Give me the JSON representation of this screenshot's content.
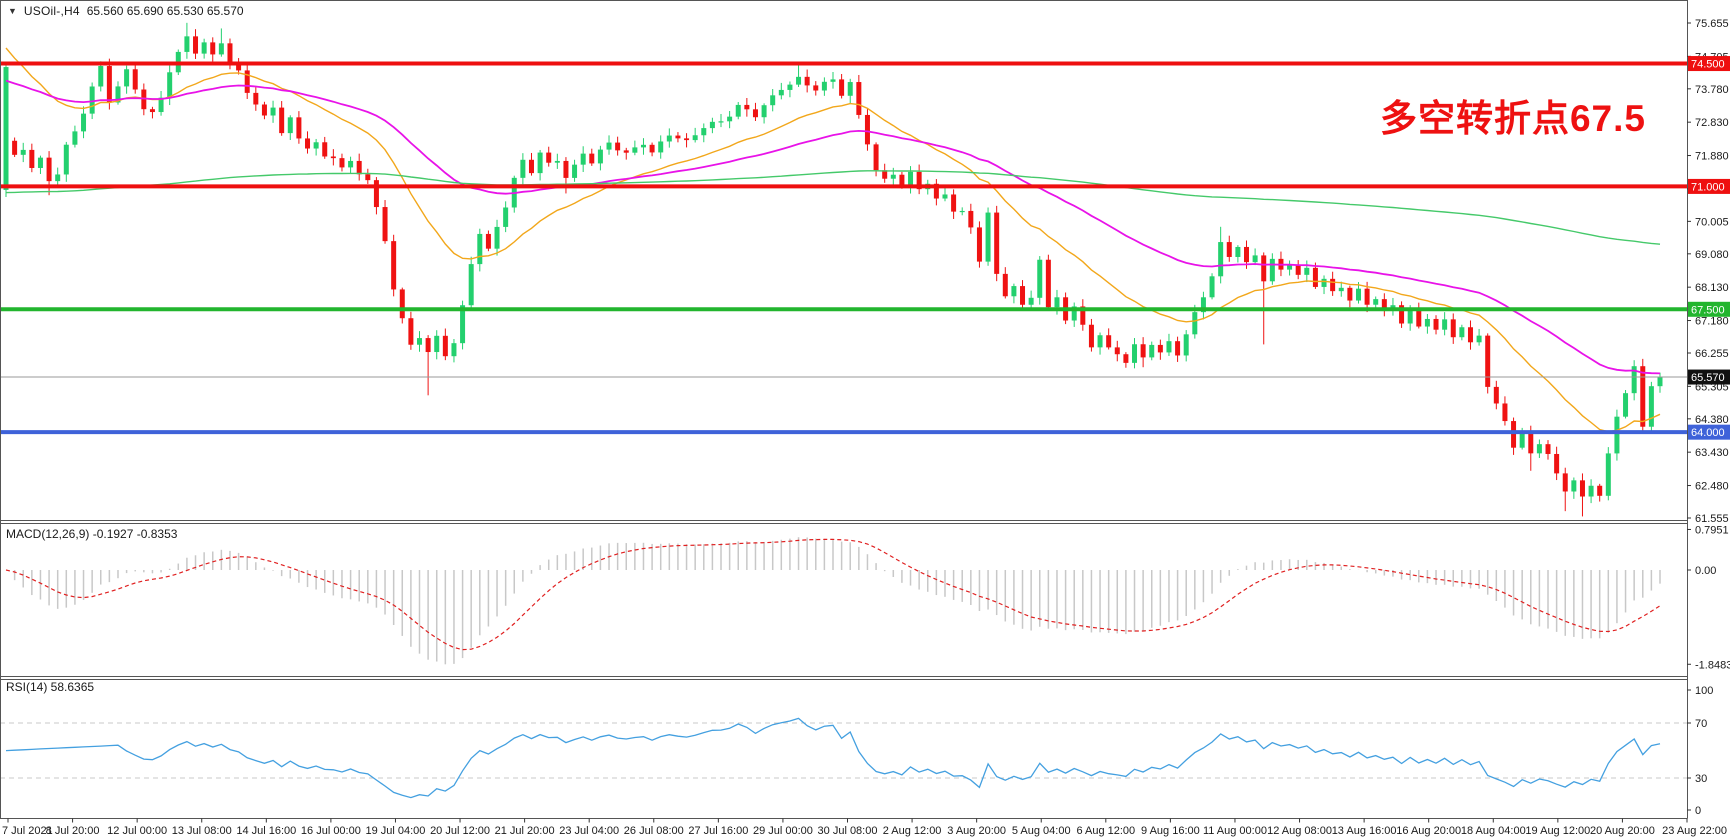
{
  "header": {
    "dropdown_icon": "▼",
    "symbol": "USOil-,H4",
    "ohlc": "65.560 65.690 65.530 65.570"
  },
  "annotation": {
    "text": "多空转折点67.5",
    "color": "#ee1111"
  },
  "colors": {
    "bull": "#23d06e",
    "bear": "#ef1212",
    "ma_fast": "#f2a71b",
    "ma_mid": "#e813e8",
    "ma_slow": "#45c96a",
    "level_red": "#ee0f0f",
    "level_green": "#22b52e",
    "level_blue": "#3e62d9",
    "current_line": "#999999",
    "current_tag_bg": "#111111",
    "macd_bar": "#c8c8c8",
    "macd_signal": "#e02020",
    "rsi_line": "#44a0e0",
    "rsi_dash": "#c8c8c8",
    "axis_text": "#1a1a1a",
    "frame": "#555555"
  },
  "main_chart": {
    "y_ticks": [
      "75.655",
      "74.705",
      "73.780",
      "72.830",
      "71.880",
      "70.930",
      "70.005",
      "69.080",
      "68.130",
      "67.180",
      "66.255",
      "65.305",
      "64.380",
      "63.430",
      "62.480",
      "61.555"
    ],
    "levels": [
      {
        "value": 74.5,
        "label": "74.500",
        "color": "#ee0f0f"
      },
      {
        "value": 71.0,
        "label": "71.000",
        "color": "#ee0f0f"
      },
      {
        "value": 67.5,
        "label": "67.500",
        "color": "#22b52e"
      },
      {
        "value": 64.0,
        "label": "64.000",
        "color": "#3e62d9"
      }
    ],
    "current_price": {
      "value": 65.57,
      "label": "65.570"
    }
  },
  "macd_panel": {
    "label": "MACD(12,26,9) -0.1927 -0.8353",
    "params": [
      12,
      26,
      9
    ],
    "values": [
      -0.1927,
      -0.8353
    ],
    "ticks": [
      {
        "label": "0.7951",
        "value": 0.7951
      },
      {
        "label": "0.00",
        "value": 0
      },
      {
        "label": "-1.8483",
        "value": -1.8483
      }
    ]
  },
  "rsi_panel": {
    "label": "RSI(14) 58.6365",
    "period": 14,
    "value": 58.6365,
    "ticks": [
      {
        "label": "100",
        "value": 100
      },
      {
        "label": "70",
        "value": 70
      },
      {
        "label": "30",
        "value": 30
      },
      {
        "label": "0",
        "value": 0
      }
    ],
    "dash_levels": [
      70,
      30
    ]
  },
  "x_axis": {
    "labels": [
      "7 Jul 2021",
      "8 Jul 20:00",
      "12 Jul 00:00",
      "13 Jul 08:00",
      "14 Jul 16:00",
      "16 Jul 00:00",
      "19 Jul 04:00",
      "20 Jul 12:00",
      "21 Jul 20:00",
      "23 Jul 04:00",
      "26 Jul 08:00",
      "27 Jul 16:00",
      "29 Jul 00:00",
      "30 Jul 08:00",
      "2 Aug 12:00",
      "3 Aug 20:00",
      "5 Aug 04:00",
      "6 Aug 12:00",
      "9 Aug 16:00",
      "11 Aug 00:00",
      "12 Aug 08:00",
      "13 Aug 16:00",
      "16 Aug 20:00",
      "18 Aug 04:00",
      "19 Aug 12:00",
      "20 Aug 20:00",
      "23 Aug 22:00"
    ]
  },
  "chart_data": {
    "type": "candlestick",
    "symbol": "USOil-",
    "timeframe": "H4",
    "title": "USOil-,H4 65.560 65.690 65.530 65.570",
    "ylim": [
      61.555,
      75.655
    ],
    "n_candles": 193,
    "last_price": 65.57,
    "close_anchors": [
      [
        0,
        74.4
      ],
      [
        1,
        71.9
      ],
      [
        2,
        72.1
      ],
      [
        3,
        71.6
      ],
      [
        4,
        71.8
      ],
      [
        5,
        71.2
      ],
      [
        6,
        71.4
      ],
      [
        7,
        72.1
      ],
      [
        8,
        72.5
      ],
      [
        9,
        73.1
      ],
      [
        10,
        73.8
      ],
      [
        11,
        74.4
      ],
      [
        12,
        73.5
      ],
      [
        13,
        73.9
      ],
      [
        14,
        74.3
      ],
      [
        15,
        73.8
      ],
      [
        16,
        73.2
      ],
      [
        17,
        73.0
      ],
      [
        18,
        73.5
      ],
      [
        19,
        74.3
      ],
      [
        20,
        74.8
      ],
      [
        21,
        75.3
      ],
      [
        22,
        74.9
      ],
      [
        23,
        75.1
      ],
      [
        24,
        74.7
      ],
      [
        25,
        75.1
      ],
      [
        26,
        74.5
      ],
      [
        27,
        74.2
      ],
      [
        28,
        73.7
      ],
      [
        29,
        73.4
      ],
      [
        30,
        73.0
      ],
      [
        31,
        73.3
      ],
      [
        32,
        72.6
      ],
      [
        33,
        72.9
      ],
      [
        34,
        72.3
      ],
      [
        35,
        72.1
      ],
      [
        36,
        72.2
      ],
      [
        37,
        71.8
      ],
      [
        38,
        71.9
      ],
      [
        39,
        71.6
      ],
      [
        40,
        71.7
      ],
      [
        41,
        71.4
      ],
      [
        42,
        71.2
      ],
      [
        43,
        70.3
      ],
      [
        44,
        69.4
      ],
      [
        45,
        68.1
      ],
      [
        46,
        67.2
      ],
      [
        47,
        66.5
      ],
      [
        48,
        66.8
      ],
      [
        49,
        66.3
      ],
      [
        50,
        66.7
      ],
      [
        51,
        66.2
      ],
      [
        52,
        66.5
      ],
      [
        53,
        67.5
      ],
      [
        54,
        68.8
      ],
      [
        55,
        69.7
      ],
      [
        56,
        69.2
      ],
      [
        57,
        69.9
      ],
      [
        58,
        70.5
      ],
      [
        59,
        71.2
      ],
      [
        60,
        71.7
      ],
      [
        61,
        71.4
      ],
      [
        62,
        71.9
      ],
      [
        63,
        71.6
      ],
      [
        64,
        71.8
      ],
      [
        65,
        71.3
      ],
      [
        66,
        71.6
      ],
      [
        67,
        72.0
      ],
      [
        68,
        71.7
      ],
      [
        70,
        72.2
      ],
      [
        72,
        71.9
      ],
      [
        74,
        72.3
      ],
      [
        75,
        72.0
      ],
      [
        77,
        72.5
      ],
      [
        79,
        72.2
      ],
      [
        81,
        72.7
      ],
      [
        83,
        72.9
      ],
      [
        85,
        73.3
      ],
      [
        87,
        73.0
      ],
      [
        89,
        73.5
      ],
      [
        90,
        73.8
      ],
      [
        92,
        74.1
      ],
      [
        94,
        73.8
      ],
      [
        96,
        74.0
      ],
      [
        97,
        73.6
      ],
      [
        98,
        73.9
      ],
      [
        99,
        73.0
      ],
      [
        100,
        72.3
      ],
      [
        101,
        71.5
      ],
      [
        102,
        71.2
      ],
      [
        103,
        71.4
      ],
      [
        104,
        71.0
      ],
      [
        105,
        71.3
      ],
      [
        106,
        70.9
      ],
      [
        107,
        71.1
      ],
      [
        108,
        70.6
      ],
      [
        109,
        70.8
      ],
      [
        110,
        70.4
      ],
      [
        111,
        70.3
      ],
      [
        112,
        69.8
      ],
      [
        113,
        68.9
      ],
      [
        114,
        70.2
      ],
      [
        115,
        68.4
      ],
      [
        116,
        67.9
      ],
      [
        117,
        68.2
      ],
      [
        118,
        67.6
      ],
      [
        119,
        67.9
      ],
      [
        120,
        69.0
      ],
      [
        121,
        67.5
      ],
      [
        122,
        67.8
      ],
      [
        123,
        67.2
      ],
      [
        124,
        67.5
      ],
      [
        125,
        67.0
      ],
      [
        126,
        66.5
      ],
      [
        127,
        66.8
      ],
      [
        128,
        66.4
      ],
      [
        129,
        66.3
      ],
      [
        130,
        66.0
      ],
      [
        131,
        66.4
      ],
      [
        132,
        66.1
      ],
      [
        133,
        66.5
      ],
      [
        134,
        66.2
      ],
      [
        135,
        66.6
      ],
      [
        136,
        66.3
      ],
      [
        137,
        66.8
      ],
      [
        138,
        67.4
      ],
      [
        139,
        67.9
      ],
      [
        140,
        68.4
      ],
      [
        141,
        69.3
      ],
      [
        142,
        69.0
      ],
      [
        143,
        69.3
      ],
      [
        144,
        68.8
      ],
      [
        145,
        69.1
      ],
      [
        146,
        68.4
      ],
      [
        147,
        68.9
      ],
      [
        148,
        68.6
      ],
      [
        149,
        68.8
      ],
      [
        150,
        68.4
      ],
      [
        151,
        68.6
      ],
      [
        152,
        68.2
      ],
      [
        153,
        68.4
      ],
      [
        154,
        68.0
      ],
      [
        155,
        68.2
      ],
      [
        156,
        67.8
      ],
      [
        157,
        68.0
      ],
      [
        158,
        67.6
      ],
      [
        159,
        67.8
      ],
      [
        160,
        67.4
      ],
      [
        161,
        67.6
      ],
      [
        162,
        67.2
      ],
      [
        163,
        67.5
      ],
      [
        164,
        67.0
      ],
      [
        165,
        67.3
      ],
      [
        166,
        66.9
      ],
      [
        167,
        67.1
      ],
      [
        168,
        66.7
      ],
      [
        169,
        67.0
      ],
      [
        170,
        66.5
      ],
      [
        171,
        66.8
      ],
      [
        172,
        65.4
      ],
      [
        173,
        64.8
      ],
      [
        174,
        64.3
      ],
      [
        175,
        63.6
      ],
      [
        176,
        63.9
      ],
      [
        177,
        63.3
      ],
      [
        178,
        63.7
      ],
      [
        179,
        63.4
      ],
      [
        180,
        62.8
      ],
      [
        181,
        62.4
      ],
      [
        182,
        62.7
      ],
      [
        183,
        62.1
      ],
      [
        184,
        62.45
      ],
      [
        185,
        62.2
      ],
      [
        186,
        63.3
      ],
      [
        187,
        64.4
      ],
      [
        188,
        65.2
      ],
      [
        189,
        65.9
      ],
      [
        190,
        64.15
      ],
      [
        191,
        65.4
      ],
      [
        192,
        65.57
      ]
    ],
    "open_overrides": {
      "0": 70.9,
      "1": 72.3
    },
    "wick_overrides": [
      {
        "i": 0,
        "low": 70.85
      },
      {
        "i": 5,
        "low": 70.75
      },
      {
        "i": 21,
        "high": 75.66
      },
      {
        "i": 25,
        "high": 75.5
      },
      {
        "i": 49,
        "low": 65.05
      },
      {
        "i": 65,
        "low": 70.8
      },
      {
        "i": 92,
        "high": 74.45
      },
      {
        "i": 114,
        "high": 70.4
      },
      {
        "i": 132,
        "low": 65.85
      },
      {
        "i": 141,
        "high": 69.85
      },
      {
        "i": 146,
        "low": 66.5
      },
      {
        "i": 177,
        "low": 62.9
      },
      {
        "i": 181,
        "low": 61.75
      },
      {
        "i": 183,
        "low": 61.6
      },
      {
        "i": 189,
        "high": 66.05
      }
    ],
    "moving_averages": [
      {
        "period": 20,
        "seed": 75.0,
        "color": "#f2a71b",
        "width": 1.4
      },
      {
        "period": 50,
        "seed": 74.0,
        "color": "#e813e8",
        "width": 1.8
      },
      {
        "period": 300,
        "seed": 70.8,
        "color": "#45c96a",
        "width": 1.4
      }
    ],
    "horizontal_levels": [
      74.5,
      71.0,
      67.5,
      64.0
    ],
    "indicators": {
      "macd": [
        12,
        26,
        9
      ],
      "rsi": 14
    }
  }
}
